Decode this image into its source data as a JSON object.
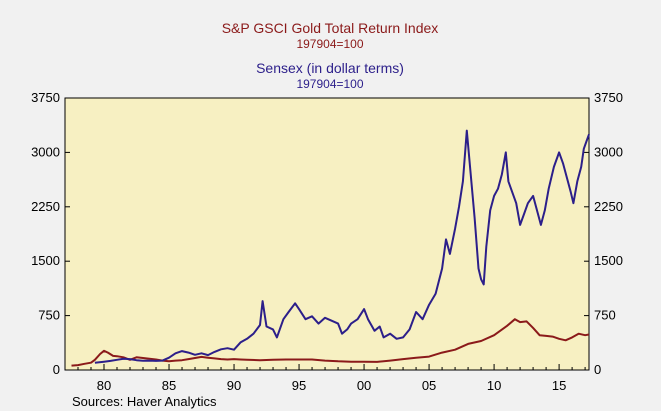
{
  "chart_data": {
    "type": "line",
    "titles": [
      {
        "text": "S&P GSCI Gold Total Return Index",
        "color": "#8b1a1a"
      },
      {
        "text": "197904=100",
        "color": "#8b1a1a"
      },
      {
        "text": "Sensex (in dollar terms)",
        "color": "#2c1f8a"
      },
      {
        "text": "197904=100",
        "color": "#2c1f8a"
      }
    ],
    "xlim": [
      1977.0,
      2017.3
    ],
    "ylim": [
      0,
      3750
    ],
    "x_ticks": [
      1980,
      1985,
      1990,
      1995,
      2000,
      2005,
      2010,
      2015
    ],
    "x_tick_labels": [
      "80",
      "85",
      "90",
      "95",
      "00",
      "05",
      "10",
      "15"
    ],
    "y_ticks": [
      0,
      750,
      1500,
      2250,
      3000,
      3750
    ],
    "y_tick_labels": [
      "0",
      "750",
      "1500",
      "2250",
      "3000",
      "3750"
    ],
    "plot_background": "#f7f0c2",
    "source": "Sources:   Haver Analytics",
    "series": [
      {
        "name": "S&P GSCI Gold Total Return Index",
        "color": "#8b1a1a",
        "points": [
          [
            1977.5,
            60
          ],
          [
            1978.0,
            68
          ],
          [
            1978.5,
            85
          ],
          [
            1979.0,
            100
          ],
          [
            1979.3,
            140
          ],
          [
            1979.7,
            220
          ],
          [
            1980.0,
            265
          ],
          [
            1980.3,
            240
          ],
          [
            1980.7,
            195
          ],
          [
            1981.0,
            190
          ],
          [
            1981.5,
            175
          ],
          [
            1982.0,
            140
          ],
          [
            1982.5,
            175
          ],
          [
            1983.0,
            165
          ],
          [
            1983.5,
            155
          ],
          [
            1984.0,
            145
          ],
          [
            1984.5,
            130
          ],
          [
            1985.0,
            120
          ],
          [
            1985.5,
            130
          ],
          [
            1986.0,
            135
          ],
          [
            1986.5,
            150
          ],
          [
            1987.0,
            165
          ],
          [
            1987.5,
            180
          ],
          [
            1988.0,
            170
          ],
          [
            1988.5,
            160
          ],
          [
            1989.0,
            150
          ],
          [
            1989.5,
            145
          ],
          [
            1990.0,
            150
          ],
          [
            1990.5,
            145
          ],
          [
            1991.0,
            140
          ],
          [
            1992.0,
            135
          ],
          [
            1993.0,
            140
          ],
          [
            1994.0,
            145
          ],
          [
            1995.0,
            145
          ],
          [
            1996.0,
            145
          ],
          [
            1997.0,
            130
          ],
          [
            1998.0,
            120
          ],
          [
            1999.0,
            115
          ],
          [
            2000.0,
            115
          ],
          [
            2001.0,
            112
          ],
          [
            2002.0,
            130
          ],
          [
            2003.0,
            150
          ],
          [
            2004.0,
            170
          ],
          [
            2005.0,
            185
          ],
          [
            2006.0,
            240
          ],
          [
            2007.0,
            280
          ],
          [
            2008.0,
            360
          ],
          [
            2009.0,
            400
          ],
          [
            2010.0,
            480
          ],
          [
            2011.0,
            610
          ],
          [
            2011.6,
            700
          ],
          [
            2012.0,
            660
          ],
          [
            2012.5,
            670
          ],
          [
            2013.0,
            580
          ],
          [
            2013.5,
            480
          ],
          [
            2014.0,
            470
          ],
          [
            2014.5,
            460
          ],
          [
            2015.0,
            430
          ],
          [
            2015.5,
            410
          ],
          [
            2016.0,
            450
          ],
          [
            2016.5,
            500
          ],
          [
            2017.0,
            480
          ],
          [
            2017.3,
            490
          ]
        ]
      },
      {
        "name": "Sensex (in dollar terms)",
        "color": "#2c1f8a",
        "points": [
          [
            1979.3,
            100
          ],
          [
            1980.0,
            115
          ],
          [
            1980.5,
            125
          ],
          [
            1981.0,
            140
          ],
          [
            1981.5,
            155
          ],
          [
            1982.0,
            150
          ],
          [
            1982.5,
            135
          ],
          [
            1983.0,
            128
          ],
          [
            1983.5,
            130
          ],
          [
            1984.0,
            125
          ],
          [
            1984.5,
            130
          ],
          [
            1985.0,
            170
          ],
          [
            1985.5,
            230
          ],
          [
            1986.0,
            260
          ],
          [
            1986.5,
            240
          ],
          [
            1987.0,
            210
          ],
          [
            1987.5,
            230
          ],
          [
            1988.0,
            205
          ],
          [
            1988.5,
            250
          ],
          [
            1989.0,
            285
          ],
          [
            1989.5,
            300
          ],
          [
            1990.0,
            280
          ],
          [
            1990.5,
            380
          ],
          [
            1991.0,
            430
          ],
          [
            1991.5,
            500
          ],
          [
            1992.0,
            620
          ],
          [
            1992.2,
            950
          ],
          [
            1992.5,
            600
          ],
          [
            1993.0,
            560
          ],
          [
            1993.3,
            450
          ],
          [
            1993.8,
            700
          ],
          [
            1994.2,
            800
          ],
          [
            1994.7,
            920
          ],
          [
            1995.0,
            840
          ],
          [
            1995.5,
            700
          ],
          [
            1996.0,
            740
          ],
          [
            1996.5,
            640
          ],
          [
            1997.0,
            720
          ],
          [
            1997.5,
            680
          ],
          [
            1998.0,
            640
          ],
          [
            1998.3,
            500
          ],
          [
            1998.7,
            560
          ],
          [
            1999.0,
            640
          ],
          [
            1999.5,
            700
          ],
          [
            2000.0,
            840
          ],
          [
            2000.3,
            700
          ],
          [
            2000.8,
            540
          ],
          [
            2001.2,
            600
          ],
          [
            2001.5,
            450
          ],
          [
            2002.0,
            500
          ],
          [
            2002.5,
            430
          ],
          [
            2003.0,
            450
          ],
          [
            2003.5,
            560
          ],
          [
            2004.0,
            800
          ],
          [
            2004.5,
            700
          ],
          [
            2005.0,
            900
          ],
          [
            2005.5,
            1050
          ],
          [
            2006.0,
            1400
          ],
          [
            2006.3,
            1800
          ],
          [
            2006.6,
            1600
          ],
          [
            2007.0,
            1950
          ],
          [
            2007.3,
            2250
          ],
          [
            2007.6,
            2600
          ],
          [
            2007.9,
            3300
          ],
          [
            2008.2,
            2700
          ],
          [
            2008.5,
            2100
          ],
          [
            2008.8,
            1400
          ],
          [
            2009.0,
            1250
          ],
          [
            2009.2,
            1180
          ],
          [
            2009.4,
            1700
          ],
          [
            2009.7,
            2200
          ],
          [
            2010.0,
            2400
          ],
          [
            2010.3,
            2500
          ],
          [
            2010.6,
            2700
          ],
          [
            2010.9,
            3000
          ],
          [
            2011.1,
            2600
          ],
          [
            2011.4,
            2450
          ],
          [
            2011.7,
            2300
          ],
          [
            2012.0,
            2000
          ],
          [
            2012.3,
            2150
          ],
          [
            2012.6,
            2300
          ],
          [
            2013.0,
            2400
          ],
          [
            2013.3,
            2200
          ],
          [
            2013.6,
            2000
          ],
          [
            2013.9,
            2200
          ],
          [
            2014.2,
            2500
          ],
          [
            2014.6,
            2800
          ],
          [
            2015.0,
            3000
          ],
          [
            2015.3,
            2850
          ],
          [
            2015.6,
            2650
          ],
          [
            2015.9,
            2450
          ],
          [
            2016.1,
            2300
          ],
          [
            2016.4,
            2600
          ],
          [
            2016.7,
            2800
          ],
          [
            2016.9,
            3050
          ],
          [
            2017.1,
            3150
          ],
          [
            2017.3,
            3250
          ]
        ]
      }
    ]
  }
}
